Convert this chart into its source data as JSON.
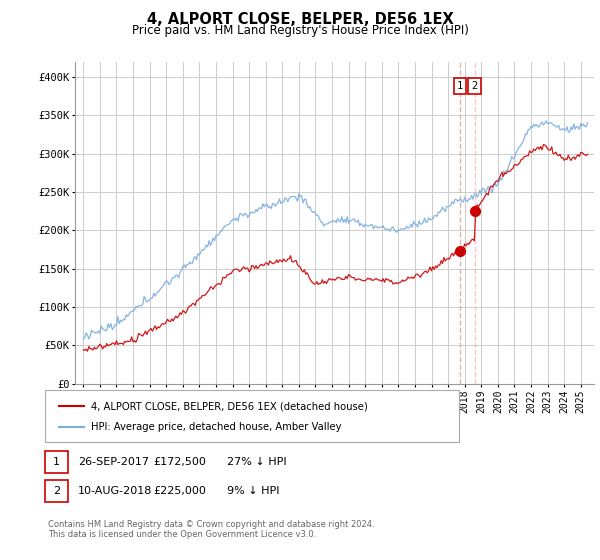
{
  "title": "4, ALPORT CLOSE, BELPER, DE56 1EX",
  "subtitle": "Price paid vs. HM Land Registry's House Price Index (HPI)",
  "legend_line1": "4, ALPORT CLOSE, BELPER, DE56 1EX (detached house)",
  "legend_line2": "HPI: Average price, detached house, Amber Valley",
  "transaction1_date": "26-SEP-2017",
  "transaction1_price": "£172,500",
  "transaction1_note": "27% ↓ HPI",
  "transaction2_date": "10-AUG-2018",
  "transaction2_price": "£225,000",
  "transaction2_note": "9% ↓ HPI",
  "footer": "Contains HM Land Registry data © Crown copyright and database right 2024.\nThis data is licensed under the Open Government Licence v3.0.",
  "red_color": "#cc0000",
  "blue_color": "#7aade0",
  "ylim": [
    0,
    420000
  ],
  "yticks": [
    0,
    50000,
    100000,
    150000,
    200000,
    250000,
    300000,
    350000,
    400000
  ],
  "ytick_labels": [
    "£0",
    "£50K",
    "£100K",
    "£150K",
    "£200K",
    "£250K",
    "£300K",
    "£350K",
    "£400K"
  ],
  "transaction1_x": 2017.73,
  "transaction1_y": 172500,
  "transaction2_x": 2018.6,
  "transaction2_y": 225000,
  "xlim_left": 1994.5,
  "xlim_right": 2025.8
}
